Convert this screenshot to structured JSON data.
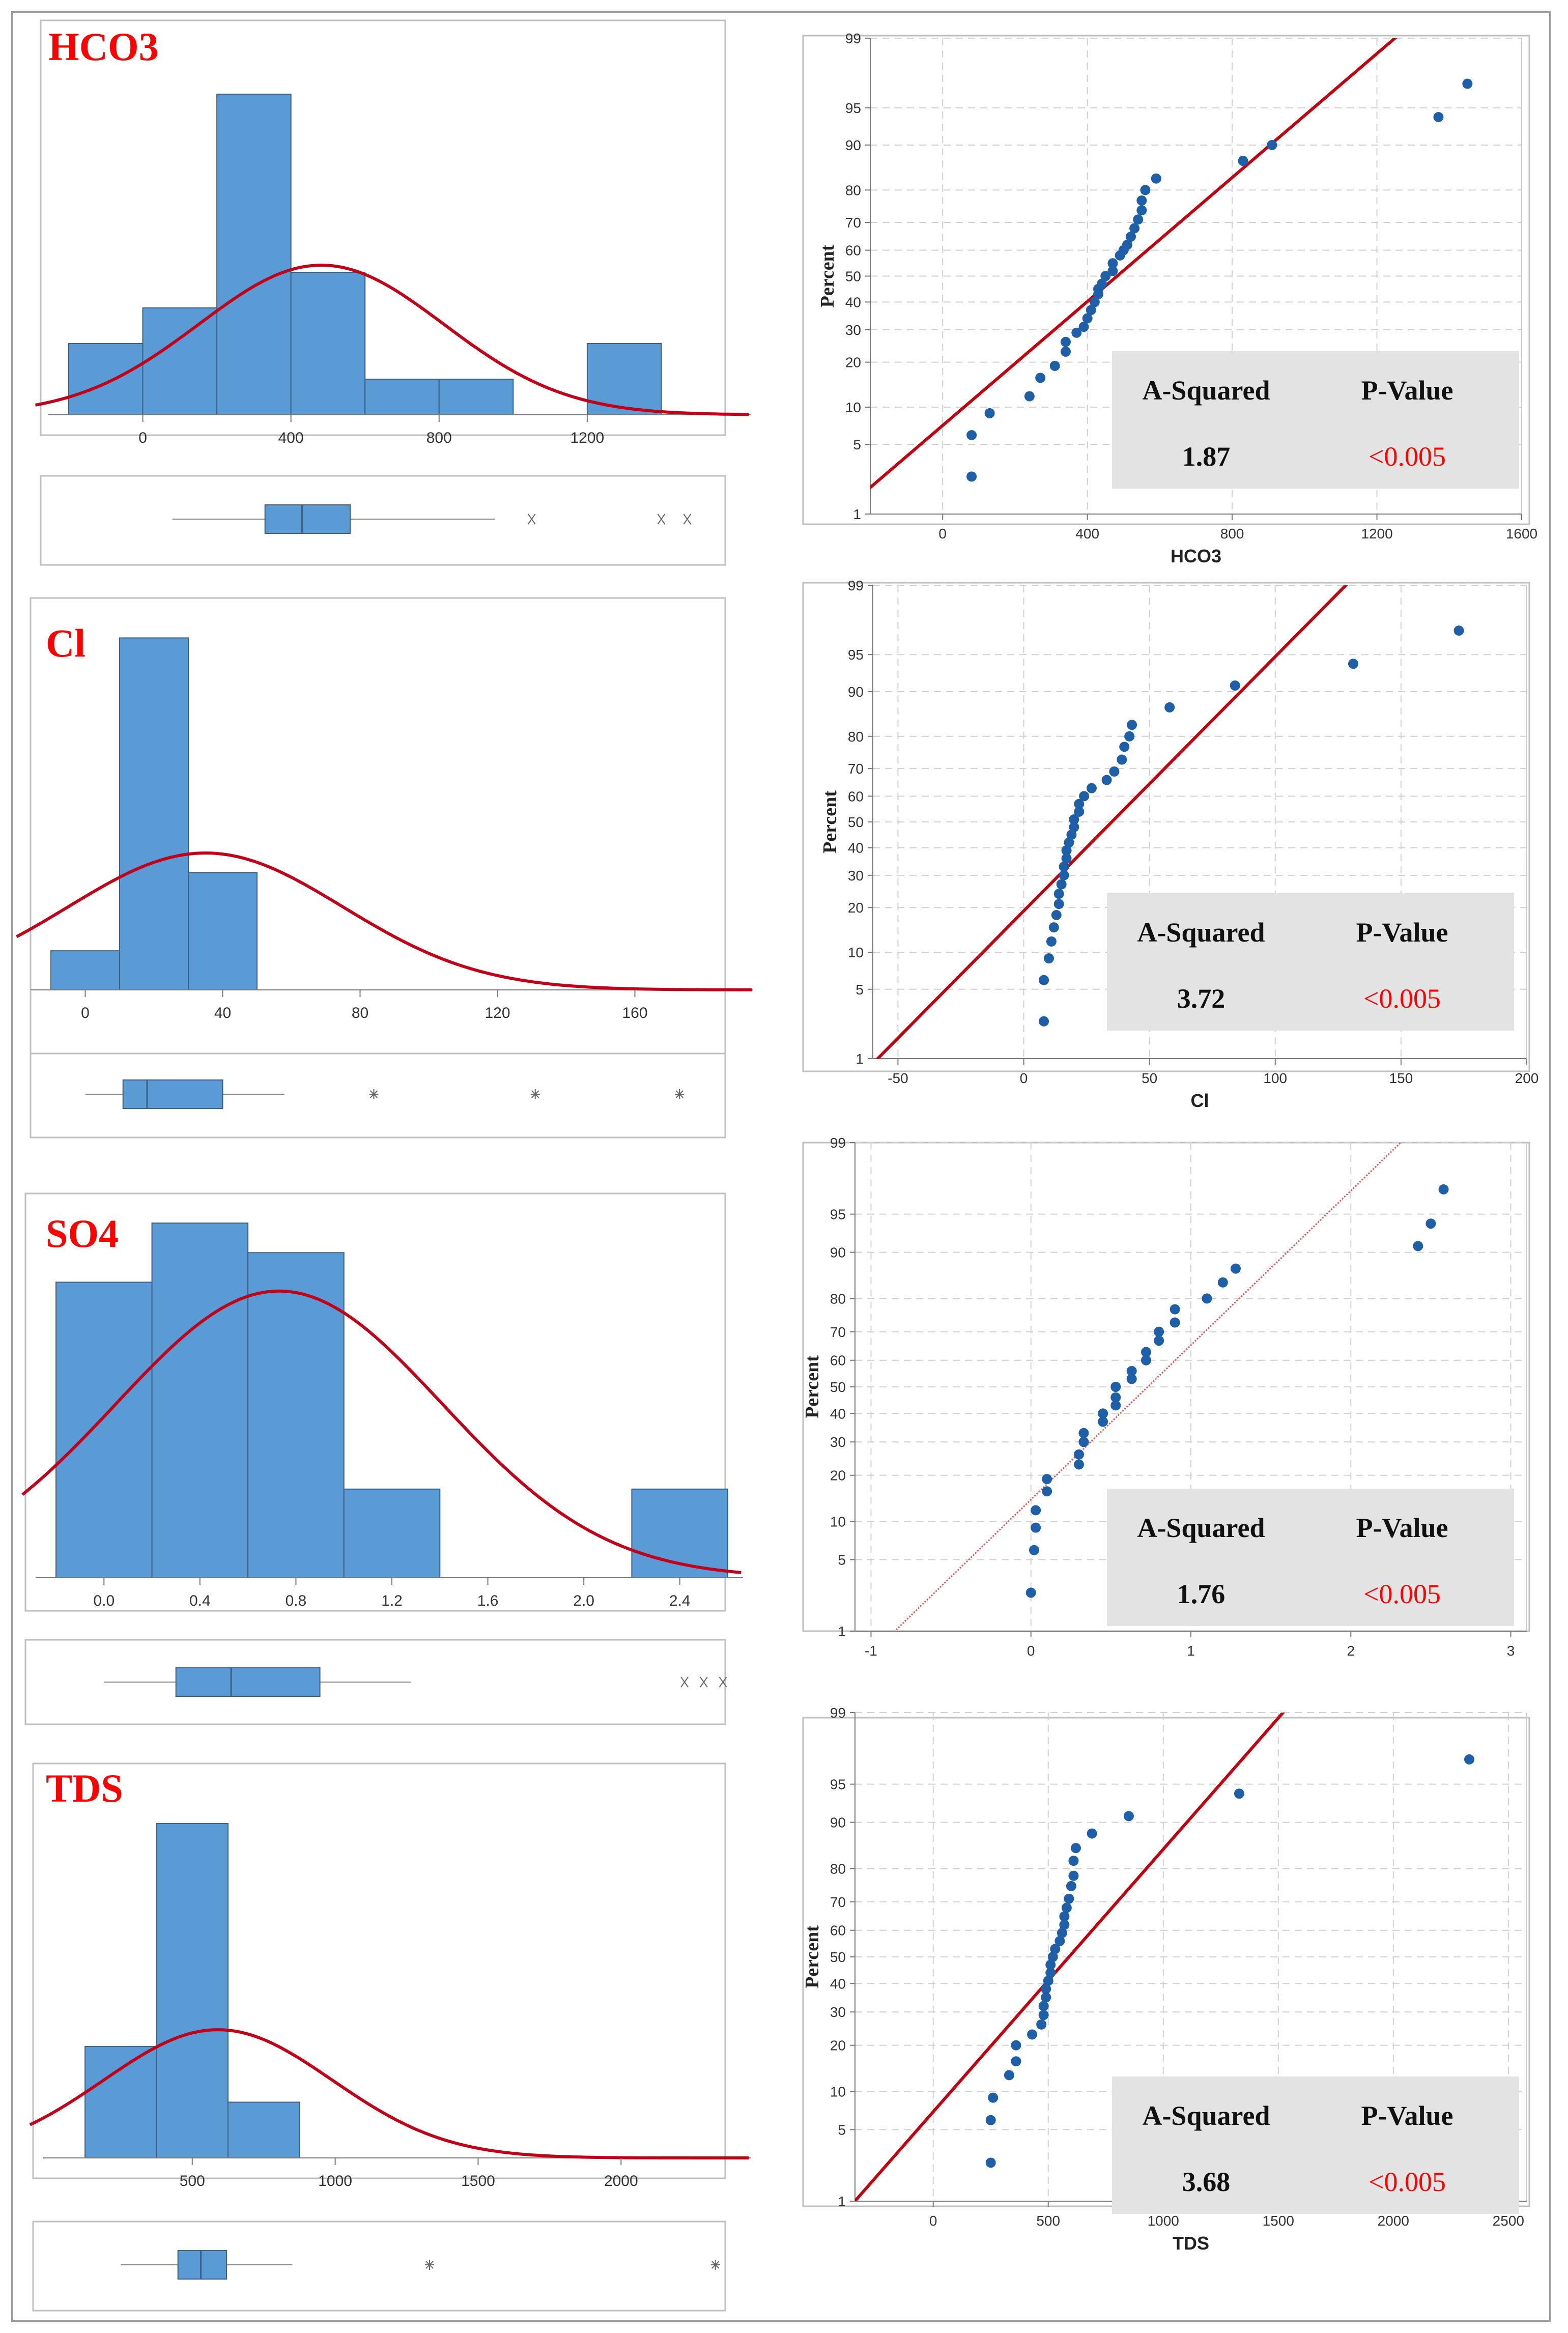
{
  "figure": {
    "panels": [
      {
        "id": "hco3",
        "label": "HCO3",
        "histogram": {
          "bins": [
            -200,
            0,
            200,
            400,
            600,
            800,
            1000,
            1200,
            1400,
            1600
          ],
          "counts": [
            2,
            3,
            9,
            4,
            1,
            1,
            0,
            2,
            0
          ],
          "xlim": [
            -200,
            1600
          ],
          "xticks": [
            0,
            400,
            800,
            1200
          ],
          "xtick_labels": [
            "0",
            "400",
            "800",
            "1200"
          ],
          "ymax": 9.5,
          "normal_curve": {
            "mean": 482,
            "sd": 330,
            "peak": 4.2
          }
        },
        "boxplot": {
          "xlim": [
            -200,
            1600
          ],
          "whisker_low": 80,
          "q1": 330,
          "median": 430,
          "q3": 560,
          "whisker_high": 950,
          "outliers": [
            1050,
            1400,
            1470
          ],
          "outlier_symbol": "x"
        },
        "probability_plot": {
          "xlabel": "HCO3",
          "ylabel": "Percent",
          "xlim": [
            -200,
            1600
          ],
          "xticks": [
            0,
            400,
            800,
            1200,
            1600
          ],
          "xtick_labels": [
            "0",
            "400",
            "800",
            "1200",
            "1600"
          ],
          "line_color": "#c0000f",
          "line_style": "solid",
          "fit_line": {
            "mean": 482,
            "sd": 330
          },
          "points": [
            [
              80,
              2.5
            ],
            [
              80,
              6
            ],
            [
              130,
              9
            ],
            [
              240,
              12
            ],
            [
              270,
              16
            ],
            [
              310,
              19
            ],
            [
              340,
              23
            ],
            [
              340,
              26
            ],
            [
              370,
              29
            ],
            [
              390,
              31
            ],
            [
              400,
              34
            ],
            [
              410,
              37
            ],
            [
              420,
              40
            ],
            [
              430,
              43
            ],
            [
              430,
              45
            ],
            [
              440,
              47
            ],
            [
              450,
              50
            ],
            [
              470,
              52
            ],
            [
              470,
              55
            ],
            [
              490,
              58
            ],
            [
              500,
              60
            ],
            [
              510,
              62
            ],
            [
              520,
              65
            ],
            [
              530,
              68
            ],
            [
              540,
              71
            ],
            [
              550,
              74
            ],
            [
              550,
              77
            ],
            [
              560,
              80
            ],
            [
              590,
              83
            ],
            [
              830,
              87
            ],
            [
              910,
              90
            ],
            [
              1370,
              94
            ],
            [
              1450,
              97
            ]
          ],
          "stats": {
            "a_squared_label": "A-Squared",
            "p_value_label": "P-Value",
            "a_squared": "1.87",
            "p_value": "<0.005"
          }
        }
      },
      {
        "id": "cl",
        "label": "Cl",
        "histogram": {
          "bins": [
            -10,
            10,
            30,
            50,
            70,
            90,
            110,
            130,
            150,
            170,
            190
          ],
          "counts": [
            1,
            9,
            3,
            0,
            0,
            0,
            0,
            0,
            0,
            0
          ],
          "xlim": [
            -10,
            190
          ],
          "xticks": [
            0,
            40,
            80,
            120,
            160
          ],
          "xtick_labels": [
            "0",
            "40",
            "80",
            "120",
            "160"
          ],
          "ymax": 9.5,
          "normal_curve": {
            "mean": 35,
            "sd": 40,
            "peak": 3.5
          }
        },
        "boxplot": {
          "xlim": [
            -10,
            190
          ],
          "whisker_low": 0,
          "q1": 11,
          "median": 18,
          "q3": 40,
          "whisker_high": 58,
          "outliers": [
            84,
            131,
            173
          ],
          "outlier_symbol": "*"
        },
        "probability_plot": {
          "xlabel": "Cl",
          "ylabel": "Percent",
          "xlim": [
            -60,
            200
          ],
          "xticks": [
            -50,
            0,
            50,
            100,
            150,
            200
          ],
          "xtick_labels": [
            "-50",
            "0",
            "50",
            "100",
            "150",
            "200"
          ],
          "line_color": "#c0000f",
          "line_style": "solid",
          "fit_line": {
            "mean": 35,
            "sd": 40
          },
          "points": [
            [
              8,
              2.5
            ],
            [
              8,
              6
            ],
            [
              10,
              9
            ],
            [
              11,
              12
            ],
            [
              12,
              15
            ],
            [
              13,
              18
            ],
            [
              14,
              21
            ],
            [
              14,
              24
            ],
            [
              15,
              27
            ],
            [
              16,
              30
            ],
            [
              16,
              33
            ],
            [
              17,
              36
            ],
            [
              17,
              39
            ],
            [
              18,
              42
            ],
            [
              19,
              45
            ],
            [
              20,
              48
            ],
            [
              20,
              51
            ],
            [
              22,
              54
            ],
            [
              22,
              57
            ],
            [
              24,
              60
            ],
            [
              27,
              63
            ],
            [
              33,
              66
            ],
            [
              36,
              69
            ],
            [
              39,
              73
            ],
            [
              40,
              77
            ],
            [
              42,
              80
            ],
            [
              43,
              83
            ],
            [
              58,
              87
            ],
            [
              84,
              91
            ],
            [
              131,
              94
            ],
            [
              173,
              97
            ]
          ],
          "stats": {
            "a_squared_label": "A-Squared",
            "p_value_label": "P-Value",
            "a_squared": "3.72",
            "p_value": "<0.005"
          }
        }
      },
      {
        "id": "so4",
        "label": "SO4",
        "histogram": {
          "bins": [
            -0.2,
            0.2,
            0.6,
            1.0,
            1.4,
            1.8,
            2.2,
            2.6
          ],
          "counts": [
            5,
            6,
            5.5,
            1.5,
            0,
            0,
            1.5
          ],
          "xlim": [
            -0.2,
            2.6
          ],
          "xticks": [
            0.0,
            0.4,
            0.8,
            1.2,
            1.6,
            2.0,
            2.4
          ],
          "xtick_labels": [
            "0.0",
            "0.4",
            "0.8",
            "1.2",
            "1.6",
            "2.0",
            "2.4"
          ],
          "ymax": 6.2,
          "normal_curve": {
            "mean": 0.73,
            "sd": 0.68,
            "peak": 4.85
          }
        },
        "boxplot": {
          "xlim": [
            -0.2,
            2.6
          ],
          "whisker_low": 0.0,
          "q1": 0.3,
          "median": 0.53,
          "q3": 0.9,
          "whisker_high": 1.28,
          "outliers": [
            2.42,
            2.5,
            2.58
          ],
          "outlier_symbol": "x"
        },
        "probability_plot": {
          "xlabel": "",
          "ylabel": "Percent",
          "xlim": [
            -1.1,
            3.1
          ],
          "xticks": [
            -1,
            0,
            1,
            2,
            3
          ],
          "xtick_labels": [
            "-1",
            "0",
            "1",
            "2",
            "3"
          ],
          "line_color": "#e05555",
          "line_style": "dotted",
          "fit_line": {
            "mean": 0.73,
            "sd": 0.68
          },
          "points": [
            [
              0.0,
              2.5
            ],
            [
              0.02,
              6
            ],
            [
              0.03,
              9
            ],
            [
              0.03,
              12
            ],
            [
              0.1,
              16
            ],
            [
              0.1,
              19
            ],
            [
              0.3,
              23
            ],
            [
              0.3,
              26
            ],
            [
              0.33,
              30
            ],
            [
              0.33,
              33
            ],
            [
              0.45,
              37
            ],
            [
              0.45,
              40
            ],
            [
              0.53,
              43
            ],
            [
              0.53,
              46
            ],
            [
              0.53,
              50
            ],
            [
              0.63,
              53
            ],
            [
              0.63,
              56
            ],
            [
              0.72,
              60
            ],
            [
              0.72,
              63
            ],
            [
              0.8,
              67
            ],
            [
              0.8,
              70
            ],
            [
              0.9,
              73
            ],
            [
              0.9,
              77
            ],
            [
              1.1,
              80
            ],
            [
              1.2,
              84
            ],
            [
              1.28,
              87
            ],
            [
              2.42,
              91
            ],
            [
              2.5,
              94
            ],
            [
              2.58,
              97
            ]
          ],
          "stats": {
            "a_squared_label": "A-Squared",
            "p_value_label": "P-Value",
            "a_squared": "1.76",
            "p_value": "<0.005"
          }
        }
      },
      {
        "id": "tds",
        "label": "TDS",
        "histogram": {
          "bins": [
            125,
            375,
            625,
            875,
            1125,
            1375,
            1625,
            1875,
            2125,
            2375
          ],
          "counts": [
            2,
            6,
            1,
            0,
            0,
            0,
            0,
            0,
            0
          ],
          "xlim": [
            50,
            2400
          ],
          "xticks": [
            500,
            1000,
            1500,
            2000
          ],
          "xtick_labels": [
            "500",
            "1000",
            "1500",
            "2000"
          ],
          "ymax": 6.3,
          "normal_curve": {
            "mean": 590,
            "sd": 400,
            "peak": 2.3
          }
        },
        "boxplot": {
          "xlim": [
            50,
            2400
          ],
          "whisker_low": 250,
          "q1": 450,
          "median": 530,
          "q3": 620,
          "whisker_high": 850,
          "outliers": [
            1330,
            2330
          ],
          "outlier_symbol": "*"
        },
        "probability_plot": {
          "xlabel": "TDS",
          "ylabel": "Percent",
          "xlim": [
            -340,
            2580
          ],
          "xticks": [
            0,
            500,
            1000,
            1500,
            2000,
            2500
          ],
          "xtick_labels": [
            "0",
            "500",
            "1000",
            "1500",
            "2000",
            "2500"
          ],
          "line_color": "#c0000f",
          "line_style": "solid",
          "fit_line": {
            "mean": 590,
            "sd": 400
          },
          "points": [
            [
              250,
              2.5
            ],
            [
              250,
              6
            ],
            [
              260,
              9
            ],
            [
              330,
              13
            ],
            [
              360,
              16
            ],
            [
              360,
              20
            ],
            [
              430,
              23
            ],
            [
              470,
              26
            ],
            [
              480,
              29
            ],
            [
              480,
              32
            ],
            [
              490,
              35
            ],
            [
              490,
              38
            ],
            [
              500,
              41
            ],
            [
              510,
              44
            ],
            [
              510,
              47
            ],
            [
              520,
              50
            ],
            [
              530,
              53
            ],
            [
              550,
              56
            ],
            [
              560,
              59
            ],
            [
              570,
              62
            ],
            [
              570,
              65
            ],
            [
              580,
              68
            ],
            [
              590,
              71
            ],
            [
              600,
              75
            ],
            [
              610,
              78
            ],
            [
              610,
              82
            ],
            [
              620,
              85
            ],
            [
              690,
              88
            ],
            [
              850,
              91
            ],
            [
              1330,
              94
            ],
            [
              2330,
              97
            ]
          ],
          "stats": {
            "a_squared_label": "A-Squared",
            "p_value_label": "P-Value",
            "a_squared": "3.68",
            "p_value": "<0.005"
          }
        }
      }
    ],
    "percent_ticks": [
      1,
      5,
      10,
      20,
      30,
      40,
      50,
      60,
      70,
      80,
      90,
      95,
      99
    ],
    "percent_tick_labels": [
      "1",
      "5",
      "10",
      "20",
      "30",
      "40",
      "50",
      "60",
      "70",
      "80",
      "90",
      "95",
      "99"
    ],
    "colors": {
      "bar": "#5b9bd5",
      "bar_edge": "#3d5f80",
      "curve": "#c00018",
      "points": "#1f5fa8",
      "label": "#ff0000",
      "pvalue": "#ff0000",
      "statsbox": "#e3e3e3",
      "grid": "#d0d0d0"
    }
  }
}
